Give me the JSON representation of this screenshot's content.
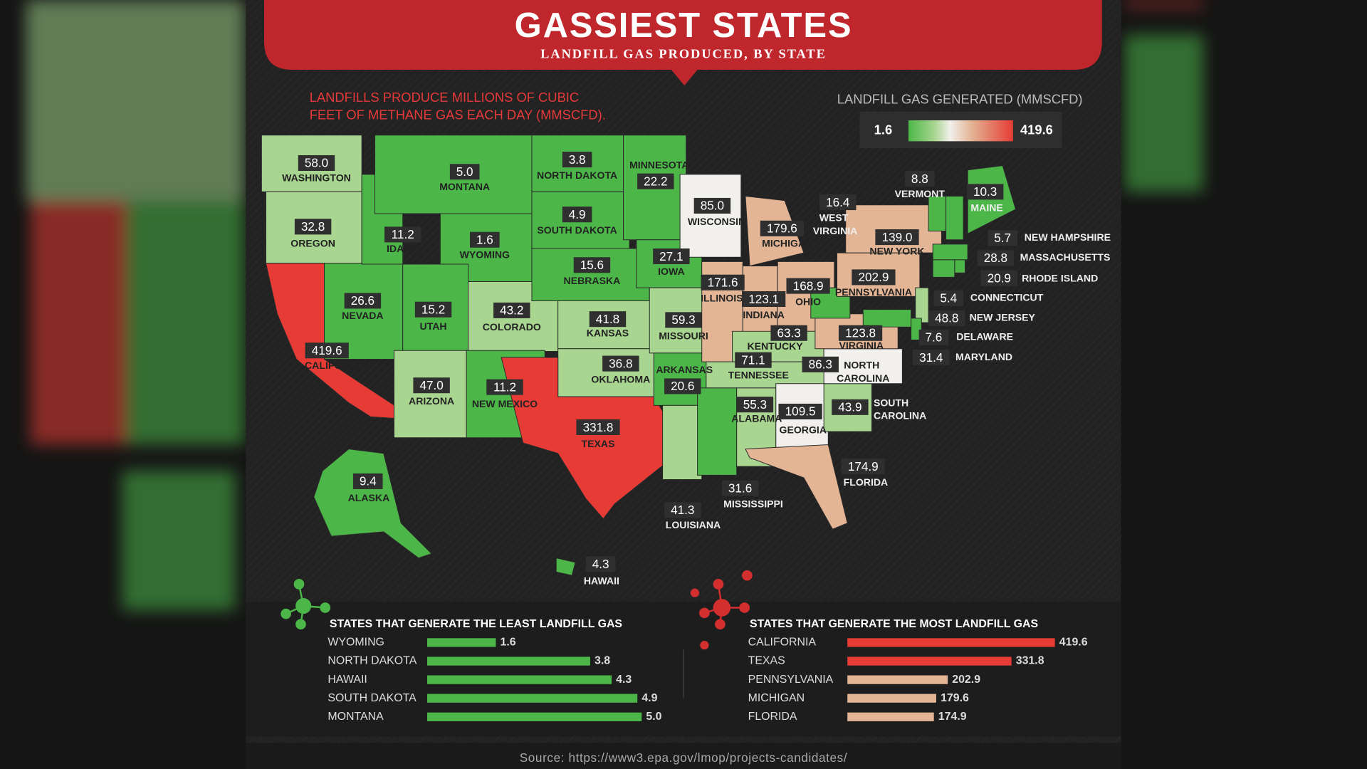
{
  "header": {
    "title": "GASSIEST STATES",
    "subtitle": "LANDFILL GAS PRODUCED, BY STATE"
  },
  "intro": [
    "LANDFILLS PRODUCE MILLIONS OF CUBIC",
    "FEET OF METHANE GAS EACH DAY (MMSCFD)."
  ],
  "source": "Source: https://www3.epa.gov/lmop/projects-candidates/",
  "chart_data": [
    {
      "type": "map",
      "legend_title": "LANDFILL GAS GENERATED (MMSCFD)",
      "clim": [
        1.6,
        419.6
      ],
      "categories": [
        "WASHINGTON",
        "OREGON",
        "CALIFORNIA",
        "NEVADA",
        "IDAHO",
        "MONTANA",
        "WYOMING",
        "UTAH",
        "ARIZONA",
        "COLORADO",
        "NEW MEXICO",
        "NORTH DAKOTA",
        "SOUTH DAKOTA",
        "NEBRASKA",
        "KANSAS",
        "OKLAHOMA",
        "TEXAS",
        "MINNESOTA",
        "IOWA",
        "MISSOURI",
        "ARKANSAS",
        "LOUISIANA",
        "WISCONSIN",
        "ILLINOIS",
        "MICHIGAN",
        "INDIANA",
        "OHIO",
        "KENTUCKY",
        "TENNESSEE",
        "MISSISSIPPI",
        "ALABAMA",
        "GEORGIA",
        "FLORIDA",
        "SOUTH CAROLINA",
        "NORTH CAROLINA",
        "VIRGINIA",
        "WEST VIRGINIA",
        "PENNSYLVANIA",
        "NEW YORK",
        "VERMONT",
        "MAINE",
        "NEW HAMPSHIRE",
        "MASSACHUSETTS",
        "RHODE ISLAND",
        "CONNECTICUT",
        "NEW JERSEY",
        "DELAWARE",
        "MARYLAND",
        "ALASKA",
        "HAWAII"
      ],
      "values": [
        58.0,
        32.8,
        419.6,
        26.6,
        11.2,
        5.0,
        1.6,
        15.2,
        47.0,
        43.2,
        11.2,
        3.8,
        4.9,
        15.6,
        41.8,
        36.8,
        331.8,
        22.2,
        27.1,
        59.3,
        20.6,
        41.3,
        85.0,
        171.6,
        179.6,
        123.1,
        168.9,
        63.3,
        71.1,
        31.6,
        55.3,
        109.5,
        174.9,
        43.9,
        86.3,
        123.8,
        16.4,
        202.9,
        139.0,
        8.8,
        10.3,
        5.7,
        28.8,
        20.9,
        5.4,
        48.8,
        7.6,
        31.4,
        9.4,
        4.3
      ],
      "value_labels": [
        "58.0",
        "32.8",
        "419.6",
        "26.6",
        "11.2",
        "5.0",
        "1.6",
        "15.2",
        "47.0",
        "43.2",
        "11.2",
        "3.8",
        "4.9",
        "15.6",
        "41.8",
        "36.8",
        "331.8",
        "22.2",
        "27.1",
        "59.3",
        "20.6",
        "41.3",
        "85.0",
        "171.6",
        "179.6",
        "123.1",
        "168.9",
        "63.3",
        "71.1",
        "31.6",
        "55.3",
        "109.5",
        "174.9",
        "43.9",
        "86.3",
        "123.8",
        "16.4",
        "202.9",
        "139.0",
        "8.8",
        "10.3",
        "5.7",
        "28.8",
        "20.9",
        "5.4",
        "48.8",
        "7.6",
        "31.4",
        "9.4",
        "4.3"
      ]
    },
    {
      "type": "hbar",
      "title": "STATES THAT GENERATE THE LEAST LANDFILL GAS",
      "categories": [
        "WYOMING",
        "NORTH DAKOTA",
        "HAWAII",
        "SOUTH DAKOTA",
        "MONTANA"
      ],
      "values": [
        1.6,
        3.8,
        4.3,
        4.9,
        5.0
      ],
      "value_labels": [
        "1.6",
        "3.8",
        "4.3",
        "4.9",
        "5.0"
      ],
      "colors": [
        "#4cb748",
        "#4cb748",
        "#4cb748",
        "#4cb748",
        "#4cb748"
      ]
    },
    {
      "type": "hbar",
      "title": "STATES THAT GENERATE THE MOST LANDFILL GAS",
      "categories": [
        "CALIFORNIA",
        "TEXAS",
        "PENNSYLVANIA",
        "MICHIGAN",
        "FLORIDA"
      ],
      "values": [
        419.6,
        331.8,
        202.9,
        179.6,
        174.9
      ],
      "value_labels": [
        "419.6",
        "331.8",
        "202.9",
        "179.6",
        "174.9"
      ],
      "colors": [
        "#e63c35",
        "#e63c35",
        "#e3b595",
        "#e3b595",
        "#e3b595"
      ]
    }
  ]
}
